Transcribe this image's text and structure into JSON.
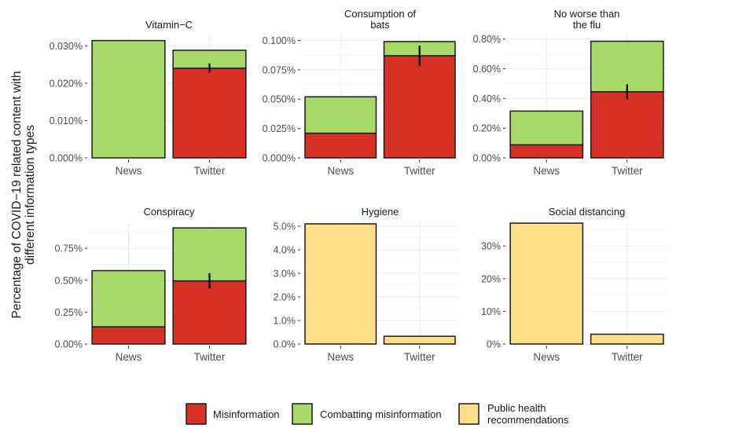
{
  "figure": {
    "ylabel_lines": [
      "Percentage of COVID−19 related content with",
      "different information types"
    ],
    "categories": [
      "News",
      "Twitter"
    ],
    "legend": [
      {
        "label_lines": [
          "Misinformation"
        ],
        "color": "#d73027"
      },
      {
        "label_lines": [
          "Combatting misinformation"
        ],
        "color": "#a6d96a"
      },
      {
        "label_lines": [
          "Public health",
          "recommendations"
        ],
        "color": "#fee08b"
      }
    ]
  },
  "colors": {
    "misinformation": "#d73027",
    "combatting": "#a6d96a",
    "public_health": "#fee08b",
    "grid_major": "#ebebeb",
    "grid_minor": "#f5f5f5",
    "outline": "#1a1a1a"
  },
  "chart_data": [
    {
      "type": "bar",
      "stacked": true,
      "title_lines": [
        "Vitamin−C"
      ],
      "categories": [
        "News",
        "Twitter"
      ],
      "ylim": [
        0,
        0.033
      ],
      "ticks": [
        0,
        0.01,
        0.02,
        0.03
      ],
      "tick_labels": [
        "0.000%",
        "0.010%",
        "0.020%",
        "0.030%"
      ],
      "series": [
        {
          "name": "Misinformation",
          "color": "#d73027",
          "values": [
            0,
            0.024
          ]
        },
        {
          "name": "Combatting misinformation",
          "color": "#a6d96a",
          "values": [
            0.0314,
            0.0048
          ]
        }
      ],
      "errorbars": [
        {
          "category": "Twitter",
          "low": 0.0228,
          "high": 0.0253
        }
      ]
    },
    {
      "type": "bar",
      "stacked": true,
      "title_lines": [
        "Consumption of",
        "bats"
      ],
      "categories": [
        "News",
        "Twitter"
      ],
      "ylim": [
        0,
        0.105
      ],
      "ticks": [
        0,
        0.025,
        0.05,
        0.075,
        0.1
      ],
      "tick_labels": [
        "0.000%",
        "0.025%",
        "0.050%",
        "0.075%",
        "0.100%"
      ],
      "series": [
        {
          "name": "Misinformation",
          "color": "#d73027",
          "values": [
            0.021,
            0.087
          ]
        },
        {
          "name": "Combatting misinformation",
          "color": "#a6d96a",
          "values": [
            0.031,
            0.012
          ]
        }
      ],
      "errorbars": [
        {
          "category": "Twitter",
          "low": 0.0785,
          "high": 0.0955
        }
      ]
    },
    {
      "type": "bar",
      "stacked": true,
      "title_lines": [
        "No worse than",
        "the flu"
      ],
      "categories": [
        "News",
        "Twitter"
      ],
      "ylim": [
        0,
        0.83
      ],
      "ticks": [
        0,
        0.2,
        0.4,
        0.6,
        0.8
      ],
      "tick_labels": [
        "0.00%",
        "0.20%",
        "0.40%",
        "0.60%",
        "0.80%"
      ],
      "series": [
        {
          "name": "Misinformation",
          "color": "#d73027",
          "values": [
            0.088,
            0.445
          ]
        },
        {
          "name": "Combatting misinformation",
          "color": "#a6d96a",
          "values": [
            0.227,
            0.34
          ]
        }
      ],
      "errorbars": [
        {
          "category": "Twitter",
          "low": 0.395,
          "high": 0.495
        }
      ]
    },
    {
      "type": "bar",
      "stacked": true,
      "title_lines": [
        "Conspiracy"
      ],
      "categories": [
        "News",
        "Twitter"
      ],
      "ylim": [
        0,
        0.96
      ],
      "ticks": [
        0,
        0.25,
        0.5,
        0.75
      ],
      "tick_labels": [
        "0.00%",
        "0.25%",
        "0.50%",
        "0.75%"
      ],
      "series": [
        {
          "name": "Misinformation",
          "color": "#d73027",
          "values": [
            0.135,
            0.495
          ]
        },
        {
          "name": "Combatting misinformation",
          "color": "#a6d96a",
          "values": [
            0.44,
            0.415
          ]
        }
      ],
      "errorbars": [
        {
          "category": "Twitter",
          "low": 0.435,
          "high": 0.555
        }
      ]
    },
    {
      "type": "bar",
      "stacked": true,
      "title_lines": [
        "Hygiene"
      ],
      "categories": [
        "News",
        "Twitter"
      ],
      "ylim": [
        0,
        5.2
      ],
      "ticks": [
        0,
        1,
        2,
        3,
        4,
        5
      ],
      "tick_labels": [
        "0.0%",
        "1.0%",
        "2.0%",
        "3.0%",
        "4.0%",
        "5.0%"
      ],
      "series": [
        {
          "name": "Public health recommendations",
          "color": "#fee08b",
          "values": [
            5.1,
            0.33
          ]
        }
      ],
      "errorbars": []
    },
    {
      "type": "bar",
      "stacked": true,
      "title_lines": [
        "Social distancing"
      ],
      "categories": [
        "News",
        "Twitter"
      ],
      "ylim": [
        0,
        37.5
      ],
      "ticks": [
        0,
        10,
        20,
        30
      ],
      "tick_labels": [
        "0%",
        "10%",
        "20%",
        "30%"
      ],
      "series": [
        {
          "name": "Public health recommendations",
          "color": "#fee08b",
          "values": [
            37,
            3
          ]
        }
      ],
      "errorbars": []
    }
  ]
}
